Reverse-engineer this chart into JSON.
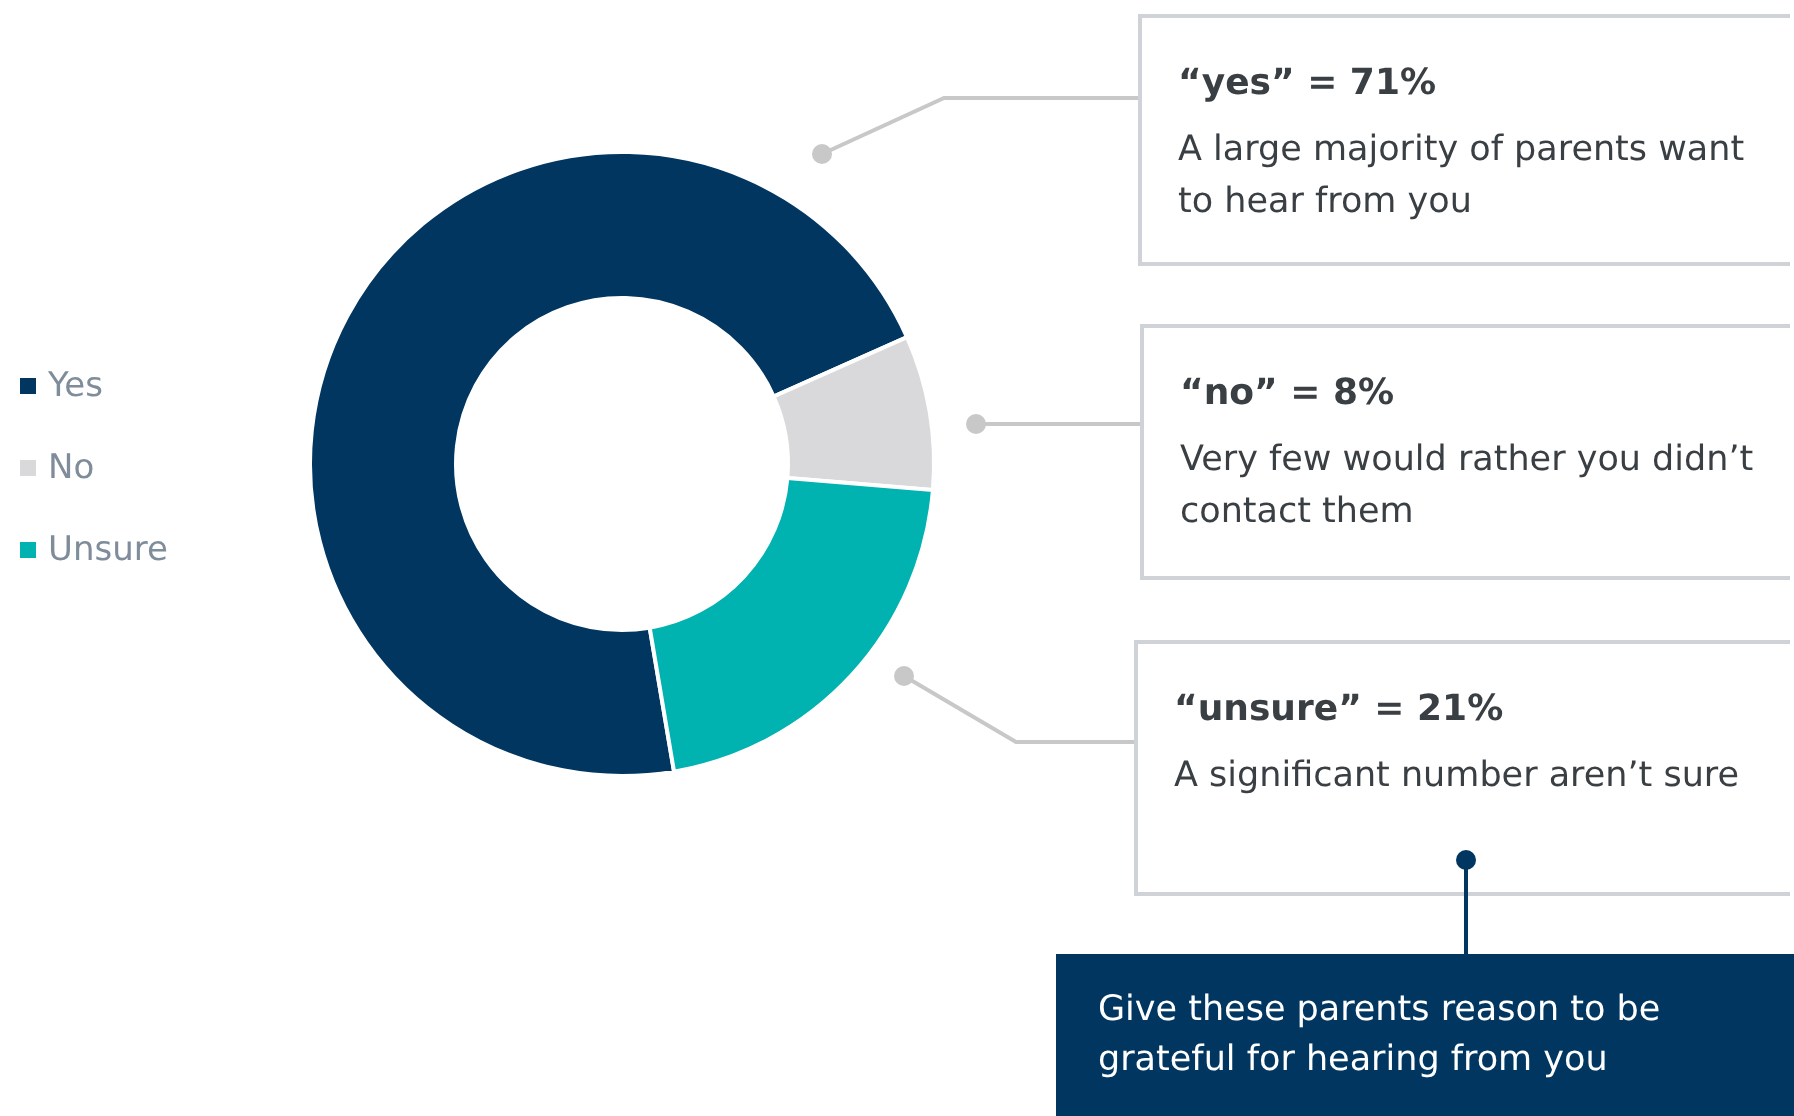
{
  "chart_data": {
    "type": "donut",
    "categories": [
      "Yes",
      "No",
      "Unsure"
    ],
    "values": [
      71,
      8,
      21
    ],
    "colors": [
      "#003660",
      "#d9d9db",
      "#00b2b0"
    ],
    "legend": "left",
    "annotations": [
      "“yes” = 71%",
      "A large majority of parents want to hear from you",
      "“no” = 8%",
      "Very few would rather you didn’t contact them",
      "“unsure” = 21%",
      "A significant number aren’t sure",
      "Give these parents reason to be grateful for hearing from you"
    ]
  }
}
